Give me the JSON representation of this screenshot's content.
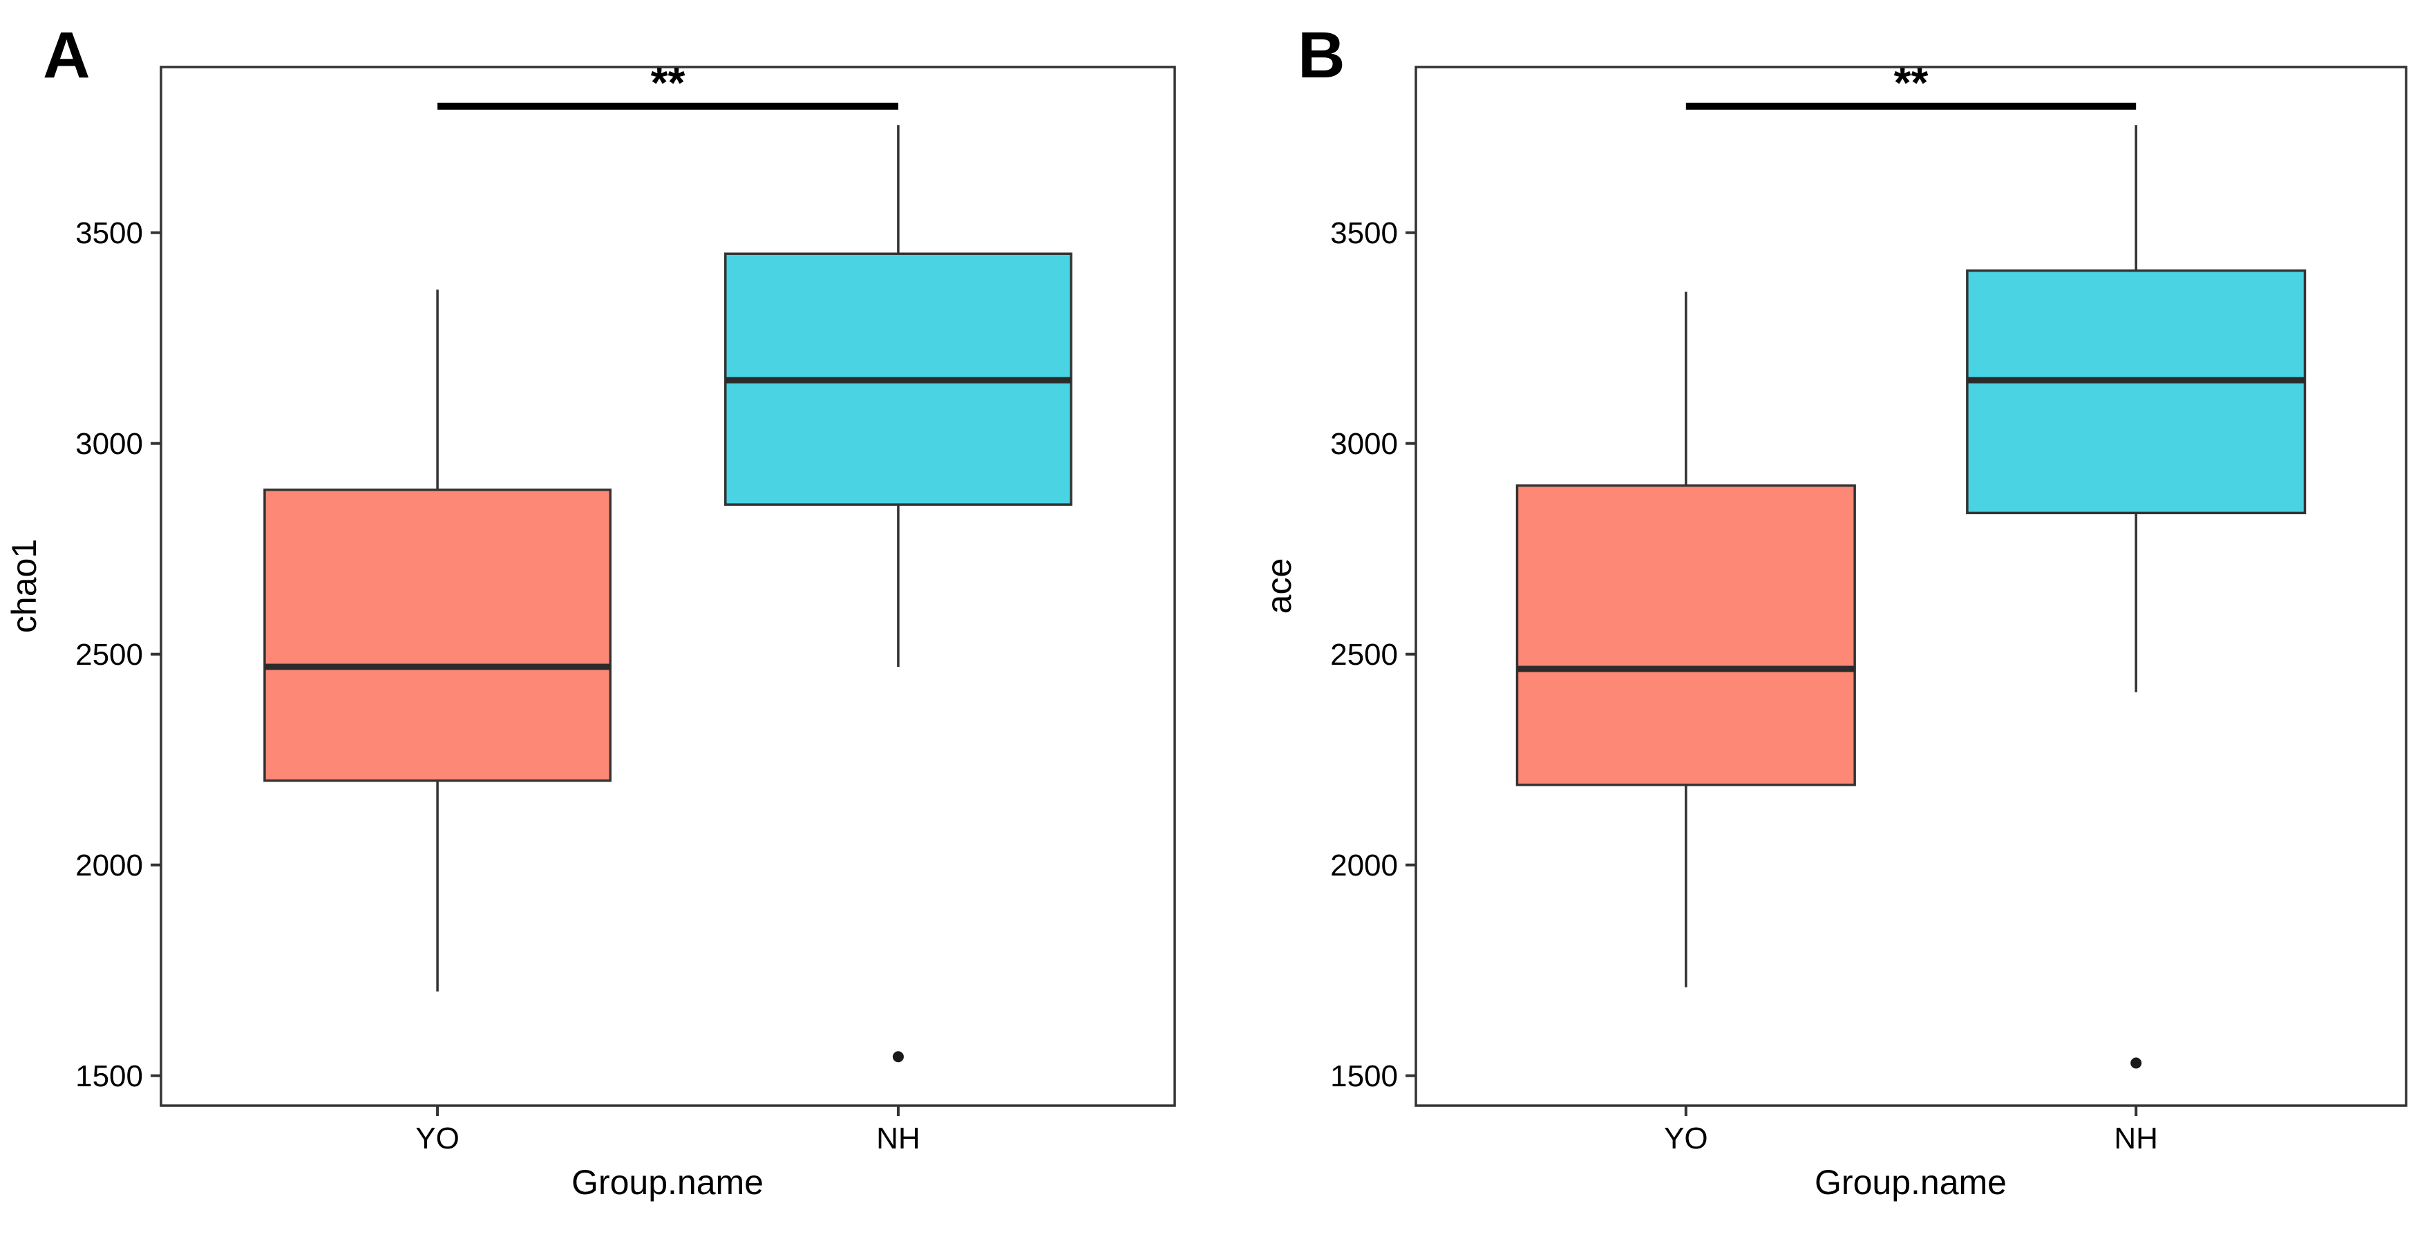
{
  "figure_background": "#ffffff",
  "panel_letters": [
    "A",
    "B"
  ],
  "style": {
    "box_stroke": "#333333",
    "median_stroke": "#2b2b2b",
    "whisker_stroke": "#333333",
    "frame_stroke": "#333333",
    "outlier_fill": "#1a1a1a",
    "sig_bar_color": "#000000",
    "text_color": "#000000"
  },
  "chart_data": [
    {
      "type": "boxplot",
      "title": "",
      "panel_letter": "A",
      "ylabel": "chao1",
      "xlabel": "Group.name",
      "categories": [
        "YO",
        "NH"
      ],
      "yticks": [
        1500,
        2000,
        2500,
        3000,
        3500
      ],
      "ylim": [
        1429,
        3893
      ],
      "grid": false,
      "legend": "none",
      "series": [
        {
          "name": "YO",
          "fill": "#FC8875",
          "whisker_low": 1700,
          "q1": 2200,
          "median": 2470,
          "q3": 2890,
          "whisker_high": 3365,
          "outliers": []
        },
        {
          "name": "NH",
          "fill": "#4AD3E2",
          "whisker_low": 2470,
          "q1": 2855,
          "median": 3150,
          "q3": 3450,
          "whisker_high": 3755,
          "outliers": [
            1545
          ]
        }
      ],
      "significance": {
        "label": "**",
        "bar_y": 3800,
        "from_category": "YO",
        "to_category": "NH"
      }
    },
    {
      "type": "boxplot",
      "title": "",
      "panel_letter": "B",
      "ylabel": "ace",
      "xlabel": "Group.name",
      "categories": [
        "YO",
        "NH"
      ],
      "yticks": [
        1500,
        2000,
        2500,
        3000,
        3500
      ],
      "ylim": [
        1429,
        3893
      ],
      "grid": false,
      "legend": "none",
      "series": [
        {
          "name": "YO",
          "fill": "#FC8875",
          "whisker_low": 1710,
          "q1": 2190,
          "median": 2465,
          "q3": 2900,
          "whisker_high": 3360,
          "outliers": []
        },
        {
          "name": "NH",
          "fill": "#4AD3E2",
          "whisker_low": 2410,
          "q1": 2835,
          "median": 3150,
          "q3": 3410,
          "whisker_high": 3755,
          "outliers": [
            1530
          ]
        }
      ],
      "significance": {
        "label": "**",
        "bar_y": 3800,
        "from_category": "YO",
        "to_category": "NH"
      }
    }
  ]
}
